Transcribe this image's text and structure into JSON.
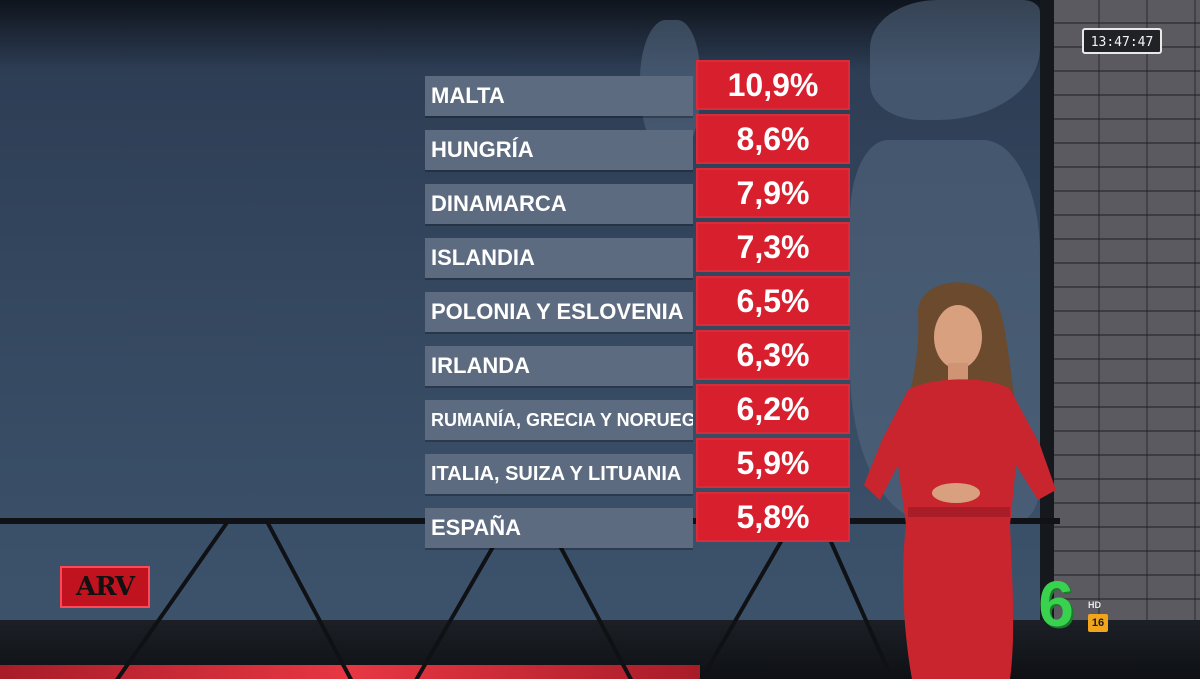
{
  "clock": "13:47:47",
  "ranking": [
    {
      "country": "MALTA",
      "value": "10,9%"
    },
    {
      "country": "HUNGRÍA",
      "value": "8,6%"
    },
    {
      "country": "DINAMARCA",
      "value": "7,9%"
    },
    {
      "country": "ISLANDIA",
      "value": "7,3%"
    },
    {
      "country": "POLONIA Y ESLOVENIA",
      "value": "6,5%"
    },
    {
      "country": "IRLANDA",
      "value": "6,3%"
    },
    {
      "country": "RUMANÍA, GRECIA Y NORUEGA",
      "value": "6,2%"
    },
    {
      "country": "ITALIA, SUIZA Y LITUANIA",
      "value": "5,9%"
    },
    {
      "country": "ESPAÑA",
      "value": "5,8%"
    }
  ],
  "program_logo": "ARV",
  "channel_logo": "6",
  "channel_hd": "HD",
  "age_rating": "16",
  "colors": {
    "value_box": "#d71f2e",
    "country_box": "#5d6b80",
    "channel_green": "#39d24f",
    "presenter_dress": "#c9252f"
  }
}
